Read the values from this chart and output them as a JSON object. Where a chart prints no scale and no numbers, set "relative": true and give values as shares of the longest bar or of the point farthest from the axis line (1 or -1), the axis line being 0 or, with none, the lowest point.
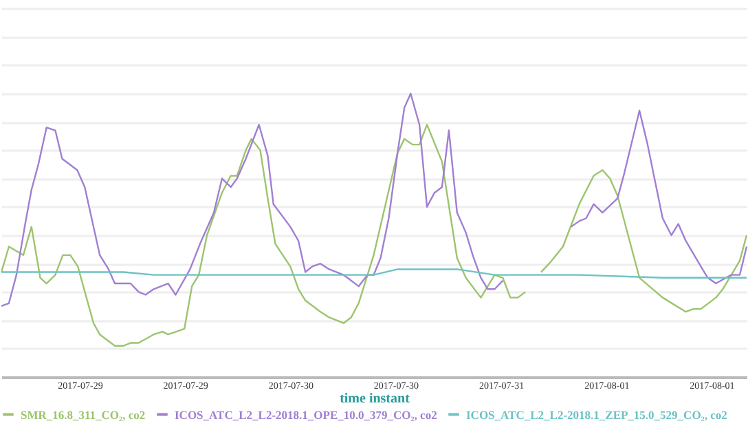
{
  "chart_data": {
    "type": "line",
    "relative": true,
    "xlabel": "time instant",
    "xlim": [
      "2017-07-28T15:35",
      "2017-08-01T18:40"
    ],
    "xticks": [
      {
        "value": "2017-07-29T02:00",
        "label": "2017-07-29"
      },
      {
        "value": "2017-07-29T16:00",
        "label": "2017-07-29"
      },
      {
        "value": "2017-07-30T06:00",
        "label": "2017-07-30"
      },
      {
        "value": "2017-07-30T20:00",
        "label": "2017-07-30"
      },
      {
        "value": "2017-07-31T10:00",
        "label": "2017-07-31"
      },
      {
        "value": "2017-08-01T00:00",
        "label": "2017-08-01"
      },
      {
        "value": "2017-08-01T14:00",
        "label": "2017-08-01"
      }
    ],
    "tick_labels": "x",
    "grid": "y",
    "legend": "bottom",
    "marker": "none",
    "line_style": "solid",
    "series": [
      {
        "name": "SMR_16.8_311_CO₂, co2",
        "color": "#9cc46e",
        "x": [
          "2017-07-28T15:35",
          "2017-07-28T16:35",
          "2017-07-28T18:30",
          "2017-07-28T19:35",
          "2017-07-28T20:45",
          "2017-07-28T21:35",
          "2017-07-28T22:45",
          "2017-07-28T23:45",
          "2017-07-29T00:45",
          "2017-07-29T01:45",
          "2017-07-29T03:50",
          "2017-07-29T04:40",
          "2017-07-29T06:40",
          "2017-07-29T07:50",
          "2017-07-29T08:45",
          "2017-07-29T09:50",
          "2017-07-29T11:50",
          "2017-07-29T13:00",
          "2017-07-29T13:45",
          "2017-07-29T15:55",
          "2017-07-29T16:55",
          "2017-07-29T17:50",
          "2017-07-29T18:55",
          "2017-07-29T20:55",
          "2017-07-29T22:05",
          "2017-07-29T22:55",
          "2017-07-30T00:05",
          "2017-07-30T00:50",
          "2017-07-30T02:00",
          "2017-07-30T03:00",
          "2017-07-30T04:00",
          "2017-07-30T06:00",
          "2017-07-30T07:05",
          "2017-07-30T08:00",
          "2017-07-30T10:00",
          "2017-07-30T11:10",
          "2017-07-30T13:05",
          "2017-07-30T14:05",
          "2017-07-30T15:05",
          "2017-07-30T17:05",
          "2017-07-30T20:15",
          "2017-07-30T21:10",
          "2017-07-30T22:15",
          "2017-07-30T23:10",
          "2017-07-31T00:10",
          "2017-07-31T02:10",
          "2017-07-31T04:10",
          "2017-07-31T05:20",
          "2017-07-31T07:20",
          "2017-07-31T09:10",
          "2017-07-31T10:15",
          "2017-07-31T11:15",
          "2017-07-31T12:15",
          "2017-07-31T13:15",
          "2017-07-31T14:20",
          "2017-07-31T15:20",
          "2017-07-31T16:25",
          "2017-07-31T18:15",
          "2017-07-31T20:25",
          "2017-07-31T22:20",
          "2017-07-31T23:30",
          "2017-08-01T00:30",
          "2017-08-01T01:30",
          "2017-08-01T04:25",
          "2017-08-01T07:30",
          "2017-08-01T10:35",
          "2017-08-01T11:35",
          "2017-08-01T12:35",
          "2017-08-01T14:35",
          "2017-08-01T15:30",
          "2017-08-01T17:45",
          "2017-08-01T18:40"
        ],
        "values": [
          0.37,
          0.46,
          0.43,
          0.53,
          0.35,
          0.33,
          0.36,
          0.43,
          0.43,
          0.39,
          0.19,
          0.15,
          0.11,
          0.11,
          0.12,
          0.12,
          0.15,
          0.16,
          0.15,
          0.17,
          0.32,
          0.36,
          0.5,
          0.65,
          0.71,
          0.71,
          0.8,
          0.84,
          0.8,
          0.63,
          0.47,
          0.39,
          0.31,
          0.27,
          0.23,
          0.21,
          0.19,
          0.21,
          0.26,
          0.43,
          0.79,
          0.84,
          0.82,
          0.82,
          0.89,
          0.76,
          0.42,
          0.35,
          0.28,
          0.36,
          0.35,
          0.28,
          0.28,
          0.3,
          null,
          0.37,
          0.4,
          0.46,
          0.61,
          0.71,
          0.73,
          0.7,
          0.64,
          0.35,
          0.28,
          0.23,
          0.24,
          0.24,
          0.28,
          0.31,
          0.41,
          0.5
        ]
      },
      {
        "name": "ICOS_ATC_L2_L2-2018.1_OPE_10.0_379_CO₂, co2",
        "color": "#a07fd3",
        "x": [
          "2017-07-28T15:35",
          "2017-07-28T16:35",
          "2017-07-28T17:35",
          "2017-07-28T18:45",
          "2017-07-28T19:35",
          "2017-07-28T20:30",
          "2017-07-28T21:35",
          "2017-07-28T22:45",
          "2017-07-28T23:40",
          "2017-07-29T01:40",
          "2017-07-29T02:40",
          "2017-07-29T04:40",
          "2017-07-29T05:50",
          "2017-07-29T06:40",
          "2017-07-29T07:35",
          "2017-07-29T08:45",
          "2017-07-29T09:50",
          "2017-07-29T10:45",
          "2017-07-29T11:50",
          "2017-07-29T13:45",
          "2017-07-29T14:45",
          "2017-07-29T16:40",
          "2017-07-29T18:00",
          "2017-07-29T19:50",
          "2017-07-29T20:55",
          "2017-07-29T22:05",
          "2017-07-29T22:55",
          "2017-07-30T00:05",
          "2017-07-30T01:50",
          "2017-07-30T03:00",
          "2017-07-30T03:45",
          "2017-07-30T06:00",
          "2017-07-30T07:05",
          "2017-07-30T08:00",
          "2017-07-30T08:55",
          "2017-07-30T10:00",
          "2017-07-30T11:10",
          "2017-07-30T13:05",
          "2017-07-30T15:05",
          "2017-07-30T16:15",
          "2017-07-30T17:05",
          "2017-07-30T18:00",
          "2017-07-30T19:05",
          "2017-07-30T20:15",
          "2017-07-30T21:10",
          "2017-07-30T22:00",
          "2017-07-30T23:10",
          "2017-07-31T00:10",
          "2017-07-31T01:10",
          "2017-07-31T02:10",
          "2017-07-31T03:05",
          "2017-07-31T04:10",
          "2017-07-31T05:20",
          "2017-07-31T06:15",
          "2017-07-31T07:20",
          "2017-07-31T08:15",
          "2017-07-31T09:10",
          "2017-07-31T10:15",
          "2017-07-31T14:40",
          "2017-07-31T19:20",
          "2017-07-31T20:25",
          "2017-07-31T21:20",
          "2017-07-31T22:20",
          "2017-07-31T23:30",
          "2017-08-01T01:30",
          "2017-08-01T02:25",
          "2017-08-01T04:25",
          "2017-08-01T05:30",
          "2017-08-01T06:25",
          "2017-08-01T07:30",
          "2017-08-01T08:40",
          "2017-08-01T09:35",
          "2017-08-01T10:35",
          "2017-08-01T12:35",
          "2017-08-01T13:30",
          "2017-08-01T14:35",
          "2017-08-01T16:35",
          "2017-08-01T17:45",
          "2017-08-01T18:40"
        ],
        "values": [
          0.25,
          0.26,
          0.36,
          0.54,
          0.66,
          0.75,
          0.88,
          0.87,
          0.77,
          0.73,
          0.67,
          0.43,
          0.38,
          0.33,
          0.33,
          0.33,
          0.3,
          0.29,
          0.31,
          0.33,
          0.29,
          0.38,
          0.47,
          0.58,
          0.7,
          0.67,
          0.7,
          0.77,
          0.89,
          0.78,
          0.61,
          0.53,
          0.48,
          0.37,
          0.39,
          0.4,
          0.38,
          0.36,
          0.32,
          0.36,
          0.36,
          0.42,
          0.56,
          0.79,
          0.95,
          1.0,
          0.89,
          0.6,
          0.65,
          0.67,
          0.87,
          0.58,
          0.51,
          0.43,
          0.35,
          0.31,
          0.31,
          0.34,
          null,
          0.53,
          0.55,
          0.56,
          0.61,
          0.58,
          0.63,
          0.72,
          0.94,
          0.82,
          0.7,
          0.56,
          0.5,
          0.54,
          0.48,
          0.39,
          0.35,
          0.33,
          0.36,
          0.36,
          0.46
        ]
      },
      {
        "name": "ICOS_ATC_L2_L2-2018.1_ZEP_15.0_529_CO₂, co2",
        "color": "#6cc2c4",
        "x": [
          "2017-07-28T15:35",
          "2017-07-29T00:45",
          "2017-07-29T07:50",
          "2017-07-29T11:50",
          "2017-07-29T18:55",
          "2017-07-30T04:00",
          "2017-07-30T13:05",
          "2017-07-30T17:05",
          "2017-07-30T20:15",
          "2017-07-31T04:10",
          "2017-07-31T09:10",
          "2017-07-31T20:25",
          "2017-08-01T07:30",
          "2017-08-01T18:40"
        ],
        "values": [
          0.37,
          0.37,
          0.37,
          0.36,
          0.36,
          0.36,
          0.36,
          0.36,
          0.38,
          0.38,
          0.36,
          0.36,
          0.35,
          0.35
        ]
      }
    ]
  }
}
